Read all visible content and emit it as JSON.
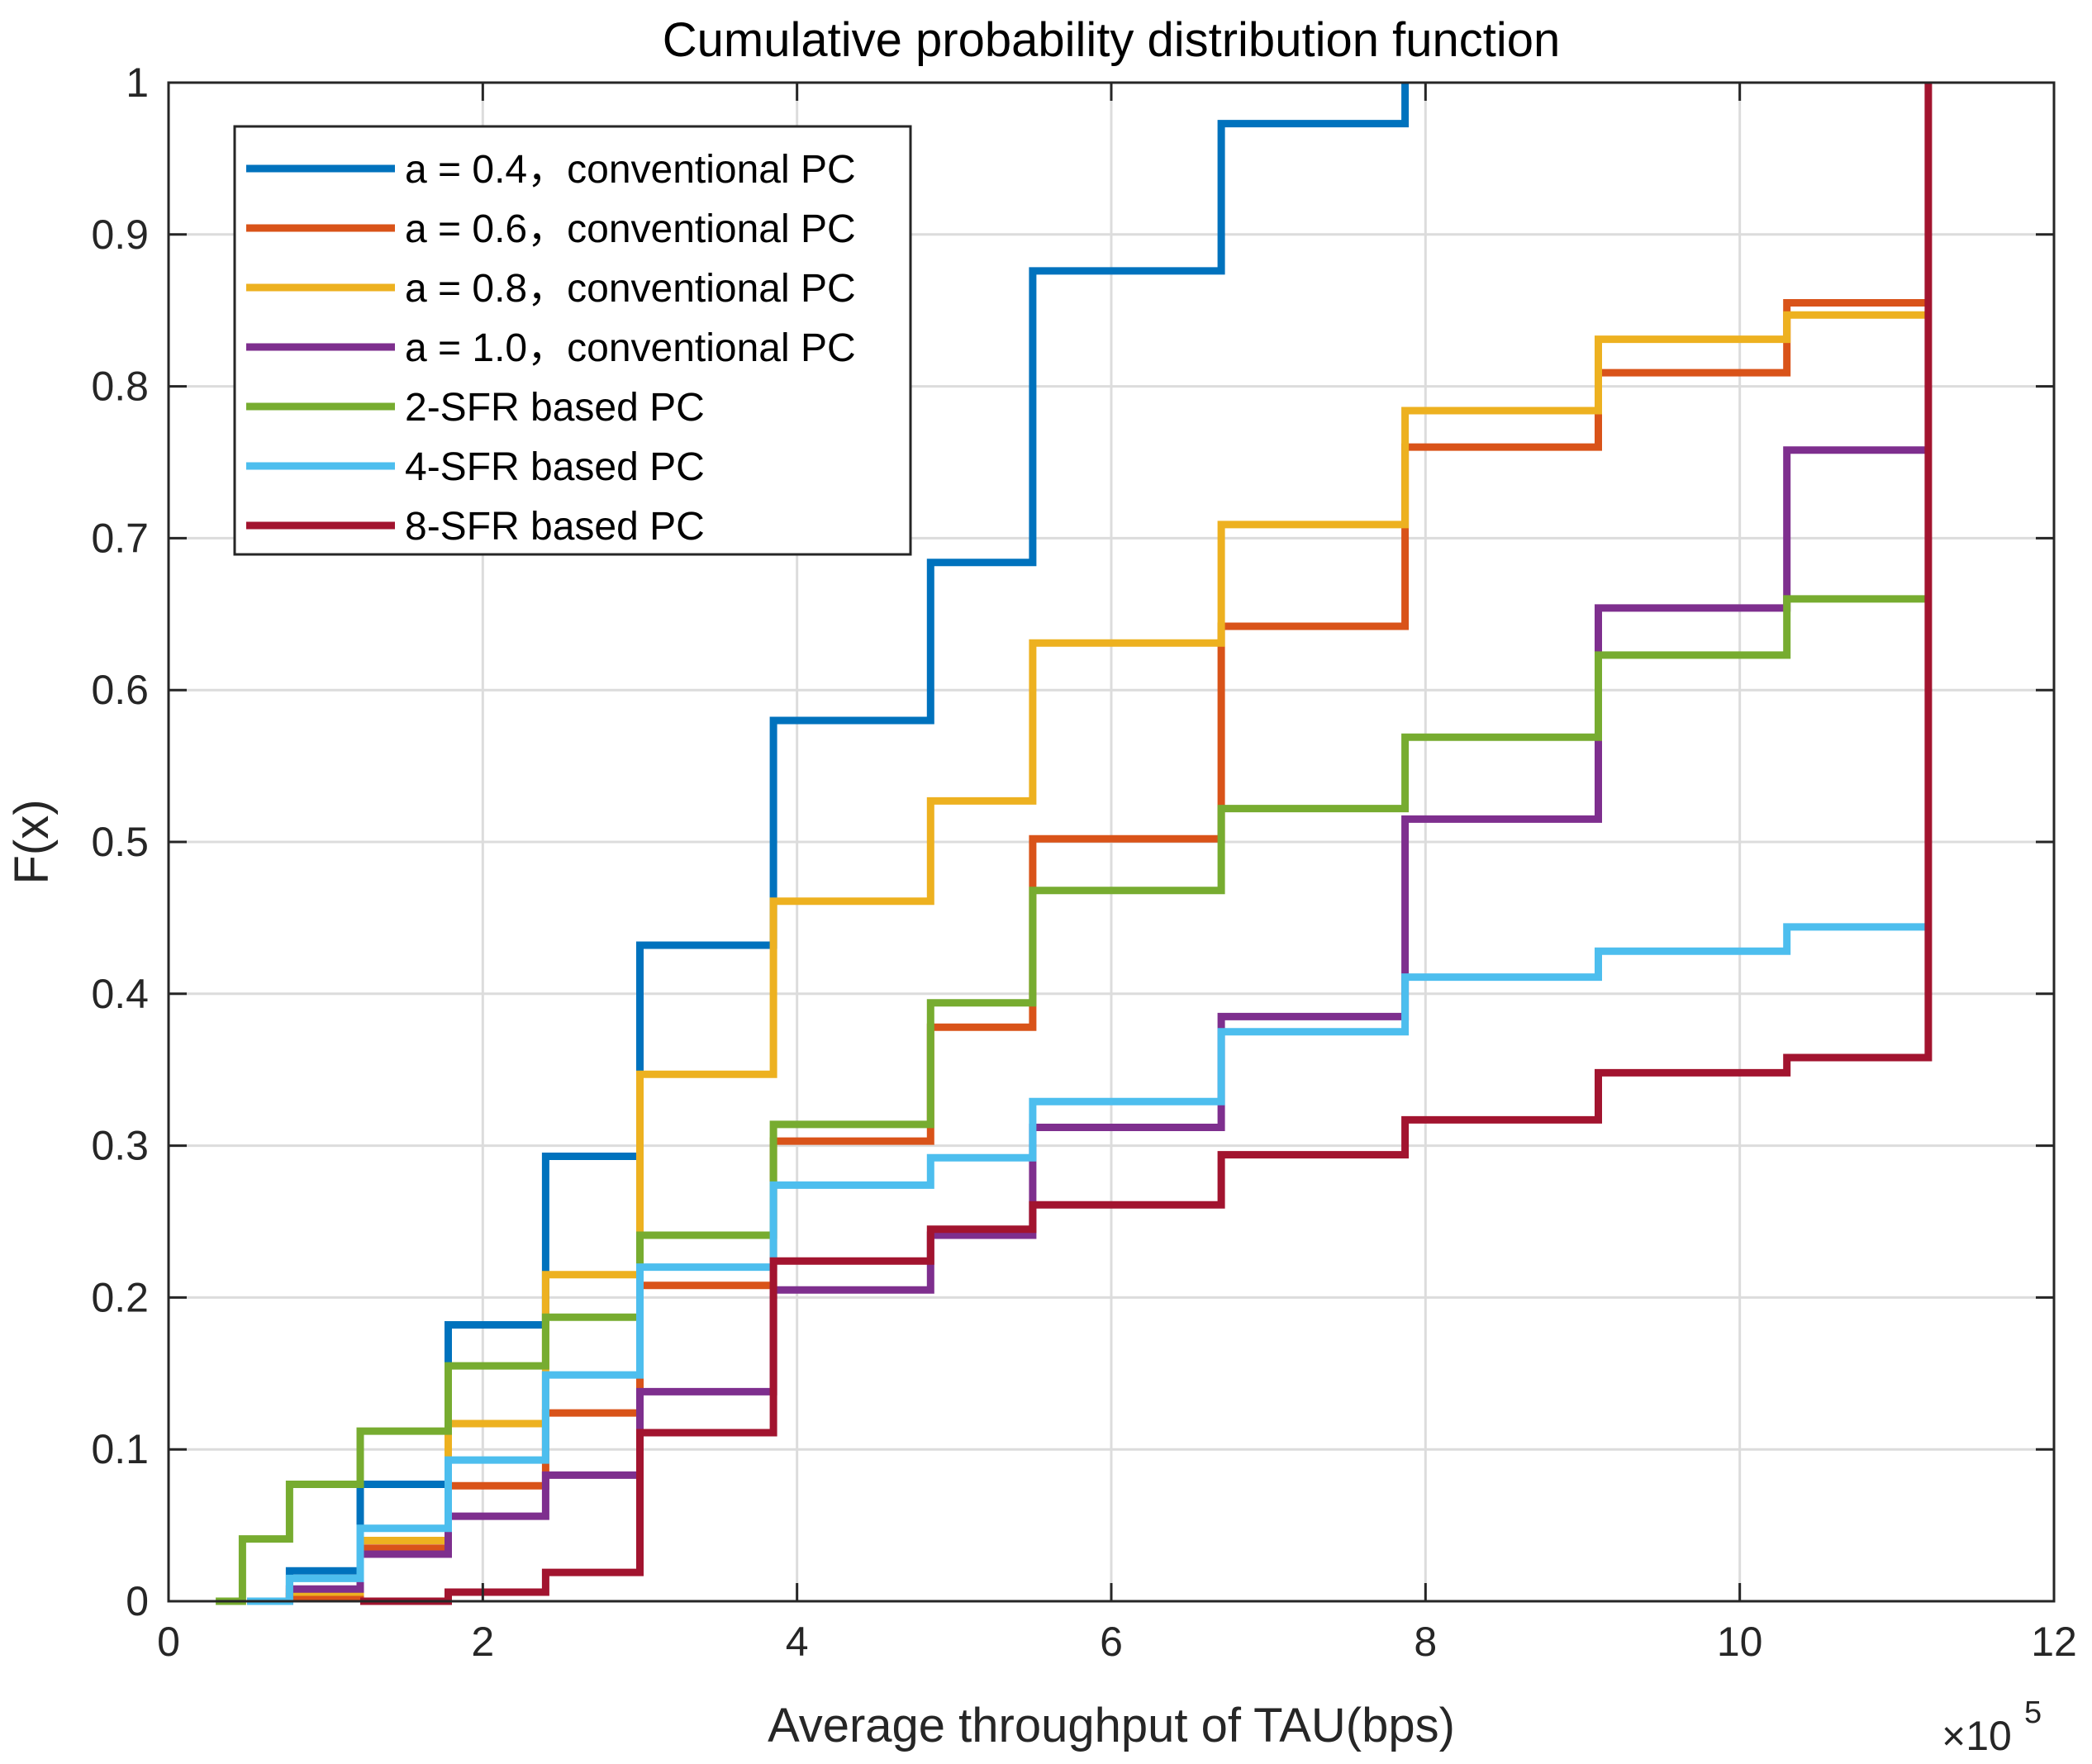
{
  "chart_data": {
    "type": "line",
    "step": true,
    "title": "Cumulative probability distribution function",
    "xlabel": "Average throughput of TAU(bps)",
    "ylabel": "F(x)",
    "x_multiplier_label": "×10",
    "x_multiplier_exponent": "5",
    "xlim": [
      0,
      12
    ],
    "ylim": [
      0,
      1
    ],
    "xticks": [
      0,
      2,
      4,
      6,
      8,
      10,
      12
    ],
    "xtick_labels": [
      "0",
      "2",
      "4",
      "6",
      "8",
      "10",
      "12"
    ],
    "yticks": [
      0,
      0.1,
      0.2,
      0.3,
      0.4,
      0.5,
      0.6,
      0.7,
      0.8,
      0.9,
      1
    ],
    "ytick_labels": [
      "0",
      "0.1",
      "0.2",
      "0.3",
      "0.4",
      "0.5",
      "0.6",
      "0.7",
      "0.8",
      "0.9",
      "1"
    ],
    "grid": true,
    "legend_position": "top-left",
    "series": [
      {
        "name": "a = 0.4，conventional PC",
        "color": "#0072BD",
        "x": [
          0.5,
          0.77,
          1.22,
          1.78,
          2.4,
          3.0,
          3.85,
          4.85,
          5.5,
          6.7,
          7.87,
          7.87
        ],
        "y": [
          0.0,
          0.02,
          0.077,
          0.182,
          0.293,
          0.432,
          0.58,
          0.684,
          0.876,
          0.973,
          1.0,
          1.0
        ]
      },
      {
        "name": "a = 0.6，conventional PC",
        "color": "#D95319",
        "x": [
          0.5,
          0.77,
          1.22,
          1.78,
          2.4,
          3.0,
          3.85,
          4.85,
          5.5,
          6.7,
          7.87,
          9.1,
          10.3,
          11.2
        ],
        "y": [
          0.0,
          0.003,
          0.035,
          0.076,
          0.124,
          0.208,
          0.303,
          0.378,
          0.502,
          0.642,
          0.76,
          0.809,
          0.855,
          0.855
        ]
      },
      {
        "name": "a = 0.8，conventional PC",
        "color": "#EDB120",
        "x": [
          0.5,
          0.77,
          1.22,
          1.78,
          2.4,
          3.0,
          3.85,
          4.85,
          5.5,
          6.7,
          7.87,
          9.1,
          10.3,
          11.2
        ],
        "y": [
          0.0,
          0.006,
          0.04,
          0.117,
          0.215,
          0.347,
          0.461,
          0.527,
          0.631,
          0.709,
          0.784,
          0.831,
          0.847,
          0.847
        ]
      },
      {
        "name": "a = 1.0，conventional PC",
        "color": "#7E2F8E",
        "x": [
          0.5,
          0.77,
          1.22,
          1.78,
          2.4,
          3.0,
          3.85,
          4.85,
          5.5,
          6.7,
          7.87,
          9.1,
          10.3,
          11.2
        ],
        "y": [
          0.0,
          0.008,
          0.031,
          0.056,
          0.083,
          0.138,
          0.205,
          0.241,
          0.312,
          0.385,
          0.515,
          0.654,
          0.758,
          0.758
        ]
      },
      {
        "name": "2-SFR based PC",
        "color": "#77AC30",
        "x": [
          0.3,
          0.47,
          0.77,
          1.22,
          1.78,
          2.4,
          3.0,
          3.85,
          4.85,
          5.5,
          6.7,
          7.87,
          9.1,
          10.3,
          11.2
        ],
        "y": [
          0.0,
          0.041,
          0.077,
          0.112,
          0.155,
          0.187,
          0.241,
          0.314,
          0.394,
          0.468,
          0.522,
          0.569,
          0.623,
          0.66,
          0.66
        ]
      },
      {
        "name": "4-SFR based PC",
        "color": "#4DBEEE",
        "x": [
          0.5,
          0.77,
          1.22,
          1.78,
          2.4,
          3.0,
          3.85,
          4.85,
          5.5,
          6.7,
          7.87,
          9.1,
          10.3,
          11.2
        ],
        "y": [
          0.0,
          0.015,
          0.048,
          0.093,
          0.149,
          0.22,
          0.274,
          0.292,
          0.329,
          0.375,
          0.411,
          0.428,
          0.444,
          0.444
        ]
      },
      {
        "name": "8-SFR based PC",
        "color": "#A2142F",
        "x": [
          1.22,
          1.78,
          2.4,
          3.0,
          3.85,
          4.85,
          5.5,
          6.7,
          7.87,
          9.1,
          10.3,
          11.2,
          11.2
        ],
        "y": [
          0.0,
          0.006,
          0.019,
          0.111,
          0.224,
          0.245,
          0.261,
          0.294,
          0.317,
          0.348,
          0.358,
          1.0,
          1.0
        ]
      }
    ]
  }
}
